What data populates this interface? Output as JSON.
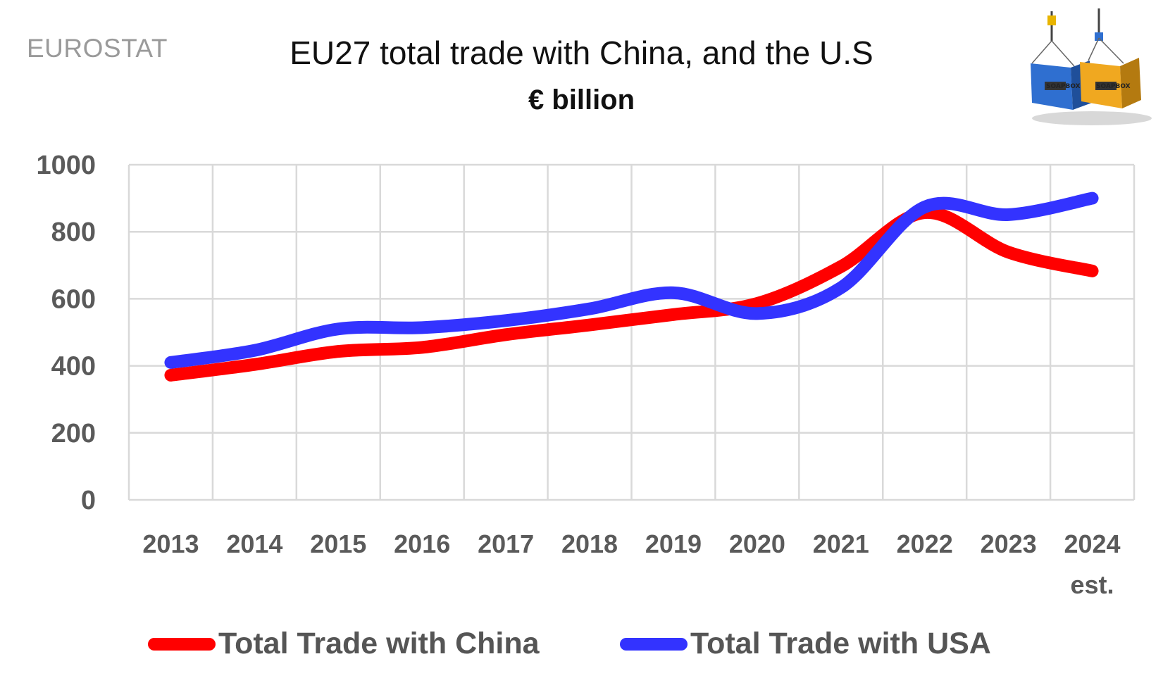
{
  "header": {
    "source": "EUROSTAT",
    "title": "EU27 total trade with China, and the U.S",
    "subtitle": "€ billion"
  },
  "logo": {
    "icon": "shipping-containers-icon",
    "container_text": "SOAPBOX",
    "colors": [
      "#2f6fd0",
      "#f0a820"
    ]
  },
  "chart_data": {
    "type": "line",
    "title": "EU27 total trade with China, and the U.S",
    "subtitle": "€ billion",
    "categories": [
      "2013",
      "2014",
      "2015",
      "2016",
      "2017",
      "2018",
      "2019",
      "2020",
      "2021",
      "2022",
      "2023",
      "2024"
    ],
    "category_sublabels": [
      "",
      "",
      "",
      "",
      "",
      "",
      "",
      "",
      "",
      "",
      "",
      "est."
    ],
    "series": [
      {
        "name": "Total Trade with China",
        "color": "#ff0000",
        "values": [
          372,
          404,
          443,
          455,
          493,
          522,
          553,
          586,
          696,
          857,
          739,
          683
        ]
      },
      {
        "name": "Total Trade with USA",
        "color": "#3333ff",
        "values": [
          410,
          446,
          510,
          514,
          535,
          570,
          618,
          556,
          633,
          874,
          851,
          900
        ]
      }
    ],
    "yticks": [
      0,
      200,
      400,
      600,
      800,
      1000
    ],
    "ylim": [
      0,
      1000
    ],
    "grid": true,
    "legend_position": "bottom",
    "smooth": true
  }
}
